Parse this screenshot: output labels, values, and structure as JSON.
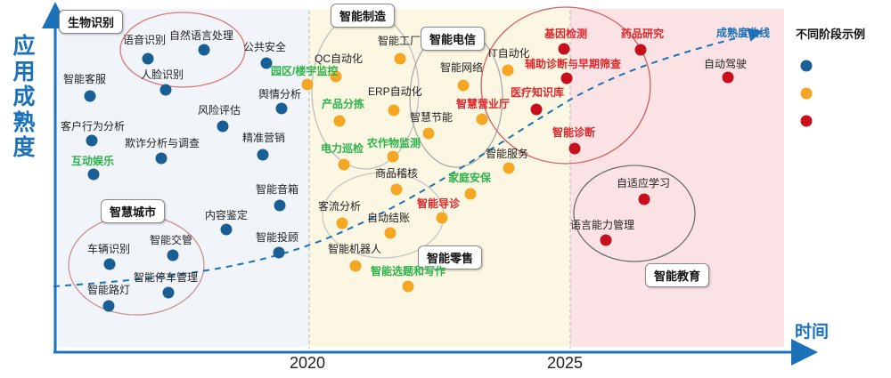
{
  "axes": {
    "y_label": "应用成熟度",
    "x_label": "时间",
    "ticks": [
      "2020",
      "2025"
    ]
  },
  "curve_label": "成熟度曲线",
  "legend": {
    "title": "不同阶段示例",
    "colors": [
      "#1a5e96",
      "#f5a623",
      "#c8101c"
    ]
  },
  "region_colors": [
    "#f1f5fa",
    "#fcf7e2",
    "#fbe3e5"
  ],
  "groups": {
    "bio": "生物识别",
    "city": "智慧城市",
    "manufacturing": "智能制造",
    "telecom": "智能电信",
    "retail": "智能零售",
    "education": "智能教育"
  },
  "points": {
    "speech": "语音识别",
    "nlp": "自然语言处理",
    "face": "人脸识别",
    "public_safety": "公共安全",
    "smart_cs": "智能客服",
    "opinion": "舆情分析",
    "risk": "风险评估",
    "behavior": "客户行为分析",
    "fraud": "欺诈分析与调查",
    "precision_mkt": "精准营销",
    "interactive_ent": "互动娱乐",
    "smart_speaker": "智能音箱",
    "content_audit": "内容鉴定",
    "smart_advert": "智能投顾",
    "vehicle": "车辆识别",
    "traffic": "智能交管",
    "parking": "智能停车管理",
    "streetlight": "智能路灯",
    "qc": "QC自动化",
    "factory": "智能工厂",
    "park_monitor": "园区/楼宇监控",
    "erp": "ERP自动化",
    "sorting": "产品分拣",
    "network": "智能网络",
    "it_auto": "IT自动化",
    "business_hall": "智慧营业厅",
    "energy": "智慧节能",
    "power_patrol": "电力巡检",
    "farm": "农作物监测",
    "goods_check": "商品稽核",
    "smart_service": "智能服务",
    "home_security": "家庭安保",
    "traffic_analysis": "客流分析",
    "guide": "智能导诊",
    "checkout": "自动结账",
    "robot": "智能机器人",
    "writing": "智能选题和写作",
    "gene": "基因检测",
    "drug": "药品研究",
    "diagnosis_screen": "辅助诊断与早期筛查",
    "medical_kb": "医疗知识库",
    "smart_diag": "智能诊断",
    "autodrive": "自动驾驶",
    "adaptive": "自适应学习",
    "language": "语言能力管理"
  }
}
